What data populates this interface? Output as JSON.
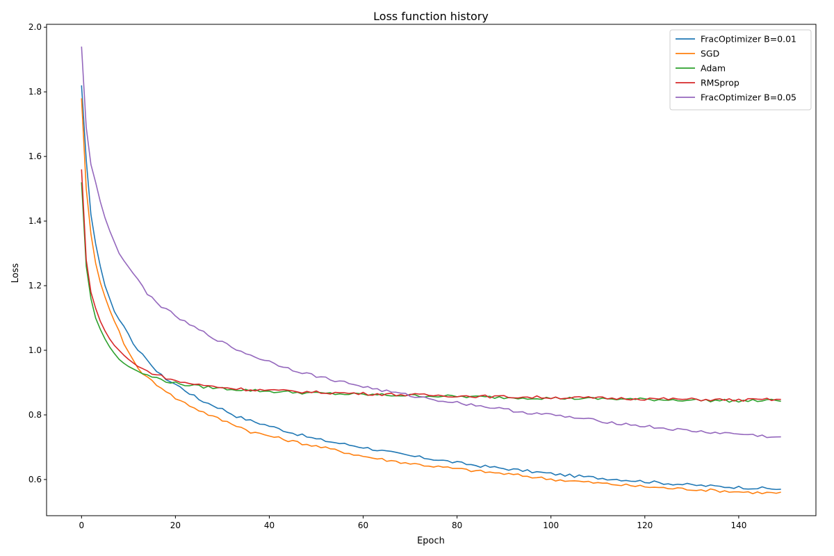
{
  "chart_data": {
    "type": "line",
    "title": "Loss function history",
    "xlabel": "Epoch",
    "ylabel": "Loss",
    "xlim": [
      -7.45,
      156.45
    ],
    "ylim": [
      0.488,
      2.009
    ],
    "xticks": [
      0,
      20,
      40,
      60,
      80,
      100,
      120,
      140
    ],
    "yticks": [
      0.6,
      0.8,
      1.0,
      1.2,
      1.4,
      1.6,
      1.8,
      2.0
    ],
    "xtick_labels": [
      "0",
      "20",
      "40",
      "60",
      "80",
      "100",
      "120",
      "140"
    ],
    "ytick_labels": [
      "0.6",
      "0.8",
      "1.0",
      "1.2",
      "1.4",
      "1.6",
      "1.8",
      "2.0"
    ],
    "grid": false,
    "legend_position": "top-right",
    "n_epochs": 150,
    "series": [
      {
        "name": "FracOptimizer B=0.01",
        "color": "#1f77b4",
        "keypoints": [
          [
            0,
            1.82
          ],
          [
            1,
            1.59
          ],
          [
            2,
            1.42
          ],
          [
            3,
            1.33
          ],
          [
            4,
            1.26
          ],
          [
            5,
            1.2
          ],
          [
            6,
            1.16
          ],
          [
            7,
            1.12
          ],
          [
            8,
            1.095
          ],
          [
            9,
            1.075
          ],
          [
            10,
            1.05
          ],
          [
            11,
            1.02
          ],
          [
            12,
            1.0
          ],
          [
            13,
            0.985
          ],
          [
            14,
            0.966
          ],
          [
            15,
            0.955
          ],
          [
            16,
            0.935
          ],
          [
            17,
            0.922
          ],
          [
            18,
            0.912
          ],
          [
            19,
            0.903
          ],
          [
            20,
            0.895
          ],
          [
            22,
            0.877
          ],
          [
            25,
            0.848
          ],
          [
            28,
            0.83
          ],
          [
            30,
            0.818
          ],
          [
            33,
            0.796
          ],
          [
            36,
            0.782
          ],
          [
            40,
            0.766
          ],
          [
            45,
            0.744
          ],
          [
            50,
            0.725
          ],
          [
            55,
            0.712
          ],
          [
            60,
            0.7
          ],
          [
            65,
            0.686
          ],
          [
            70,
            0.673
          ],
          [
            75,
            0.663
          ],
          [
            80,
            0.652
          ],
          [
            85,
            0.642
          ],
          [
            90,
            0.634
          ],
          [
            95,
            0.626
          ],
          [
            100,
            0.618
          ],
          [
            105,
            0.611
          ],
          [
            110,
            0.605
          ],
          [
            115,
            0.6
          ],
          [
            120,
            0.594
          ],
          [
            125,
            0.588
          ],
          [
            130,
            0.583
          ],
          [
            135,
            0.579
          ],
          [
            140,
            0.576
          ],
          [
            145,
            0.573
          ],
          [
            149,
            0.57
          ]
        ]
      },
      {
        "name": "SGD",
        "color": "#ff7f0e",
        "keypoints": [
          [
            0,
            1.78
          ],
          [
            1,
            1.5
          ],
          [
            2,
            1.36
          ],
          [
            3,
            1.27
          ],
          [
            4,
            1.21
          ],
          [
            5,
            1.165
          ],
          [
            6,
            1.125
          ],
          [
            7,
            1.09
          ],
          [
            8,
            1.06
          ],
          [
            9,
            1.02
          ],
          [
            10,
            0.995
          ],
          [
            11,
            0.97
          ],
          [
            12,
            0.945
          ],
          [
            13,
            0.93
          ],
          [
            14,
            0.915
          ],
          [
            15,
            0.905
          ],
          [
            16,
            0.895
          ],
          [
            17,
            0.885
          ],
          [
            18,
            0.875
          ],
          [
            19,
            0.862
          ],
          [
            20,
            0.852
          ],
          [
            22,
            0.837
          ],
          [
            25,
            0.815
          ],
          [
            28,
            0.795
          ],
          [
            30,
            0.783
          ],
          [
            33,
            0.768
          ],
          [
            36,
            0.748
          ],
          [
            40,
            0.735
          ],
          [
            45,
            0.718
          ],
          [
            50,
            0.703
          ],
          [
            55,
            0.688
          ],
          [
            60,
            0.672
          ],
          [
            65,
            0.66
          ],
          [
            70,
            0.65
          ],
          [
            75,
            0.641
          ],
          [
            80,
            0.633
          ],
          [
            85,
            0.625
          ],
          [
            90,
            0.618
          ],
          [
            95,
            0.61
          ],
          [
            100,
            0.601
          ],
          [
            105,
            0.595
          ],
          [
            110,
            0.589
          ],
          [
            115,
            0.583
          ],
          [
            120,
            0.578
          ],
          [
            125,
            0.573
          ],
          [
            130,
            0.57
          ],
          [
            135,
            0.566
          ],
          [
            140,
            0.562
          ],
          [
            145,
            0.559
          ],
          [
            149,
            0.558
          ]
        ]
      },
      {
        "name": "Adam",
        "color": "#2ca02c",
        "keypoints": [
          [
            0,
            1.52
          ],
          [
            1,
            1.26
          ],
          [
            2,
            1.16
          ],
          [
            3,
            1.1
          ],
          [
            4,
            1.065
          ],
          [
            5,
            1.035
          ],
          [
            6,
            1.01
          ],
          [
            7,
            0.99
          ],
          [
            8,
            0.972
          ],
          [
            9,
            0.96
          ],
          [
            10,
            0.95
          ],
          [
            12,
            0.935
          ],
          [
            14,
            0.922
          ],
          [
            16,
            0.914
          ],
          [
            18,
            0.905
          ],
          [
            20,
            0.898
          ],
          [
            25,
            0.888
          ],
          [
            30,
            0.882
          ],
          [
            35,
            0.877
          ],
          [
            40,
            0.873
          ],
          [
            45,
            0.87
          ],
          [
            50,
            0.867
          ],
          [
            60,
            0.863
          ],
          [
            70,
            0.86
          ],
          [
            80,
            0.857
          ],
          [
            90,
            0.854
          ],
          [
            100,
            0.852
          ],
          [
            110,
            0.85
          ],
          [
            120,
            0.848
          ],
          [
            130,
            0.846
          ],
          [
            140,
            0.843
          ],
          [
            149,
            0.845
          ]
        ]
      },
      {
        "name": "RMSprop",
        "color": "#d62728",
        "keypoints": [
          [
            0,
            1.56
          ],
          [
            1,
            1.28
          ],
          [
            2,
            1.18
          ],
          [
            3,
            1.13
          ],
          [
            4,
            1.09
          ],
          [
            5,
            1.06
          ],
          [
            6,
            1.035
          ],
          [
            7,
            1.015
          ],
          [
            8,
            1.0
          ],
          [
            9,
            0.985
          ],
          [
            10,
            0.972
          ],
          [
            12,
            0.95
          ],
          [
            14,
            0.935
          ],
          [
            16,
            0.925
          ],
          [
            18,
            0.915
          ],
          [
            20,
            0.905
          ],
          [
            25,
            0.893
          ],
          [
            30,
            0.885
          ],
          [
            35,
            0.879
          ],
          [
            40,
            0.876
          ],
          [
            45,
            0.873
          ],
          [
            50,
            0.87
          ],
          [
            60,
            0.866
          ],
          [
            70,
            0.862
          ],
          [
            80,
            0.859
          ],
          [
            90,
            0.856
          ],
          [
            100,
            0.854
          ],
          [
            110,
            0.852
          ],
          [
            120,
            0.85
          ],
          [
            130,
            0.848
          ],
          [
            140,
            0.846
          ],
          [
            149,
            0.848
          ]
        ]
      },
      {
        "name": "FracOptimizer B=0.05",
        "color": "#9467bd",
        "keypoints": [
          [
            0,
            1.94
          ],
          [
            1,
            1.69
          ],
          [
            2,
            1.575
          ],
          [
            3,
            1.52
          ],
          [
            4,
            1.46
          ],
          [
            5,
            1.41
          ],
          [
            6,
            1.37
          ],
          [
            7,
            1.335
          ],
          [
            8,
            1.3
          ],
          [
            9,
            1.278
          ],
          [
            10,
            1.258
          ],
          [
            11,
            1.238
          ],
          [
            12,
            1.22
          ],
          [
            13,
            1.196
          ],
          [
            14,
            1.172
          ],
          [
            15,
            1.163
          ],
          [
            16,
            1.152
          ],
          [
            17,
            1.135
          ],
          [
            18,
            1.125
          ],
          [
            19,
            1.117
          ],
          [
            20,
            1.107
          ],
          [
            22,
            1.087
          ],
          [
            25,
            1.063
          ],
          [
            28,
            1.04
          ],
          [
            30,
            1.024
          ],
          [
            33,
            1.003
          ],
          [
            36,
            0.985
          ],
          [
            40,
            0.965
          ],
          [
            45,
            0.94
          ],
          [
            50,
            0.92
          ],
          [
            55,
            0.904
          ],
          [
            60,
            0.888
          ],
          [
            65,
            0.873
          ],
          [
            70,
            0.86
          ],
          [
            75,
            0.848
          ],
          [
            80,
            0.838
          ],
          [
            85,
            0.828
          ],
          [
            90,
            0.817
          ],
          [
            95,
            0.807
          ],
          [
            100,
            0.8
          ],
          [
            105,
            0.791
          ],
          [
            110,
            0.782
          ],
          [
            115,
            0.773
          ],
          [
            120,
            0.765
          ],
          [
            125,
            0.757
          ],
          [
            130,
            0.75
          ],
          [
            135,
            0.745
          ],
          [
            140,
            0.741
          ],
          [
            145,
            0.735
          ],
          [
            149,
            0.729
          ]
        ]
      }
    ]
  }
}
